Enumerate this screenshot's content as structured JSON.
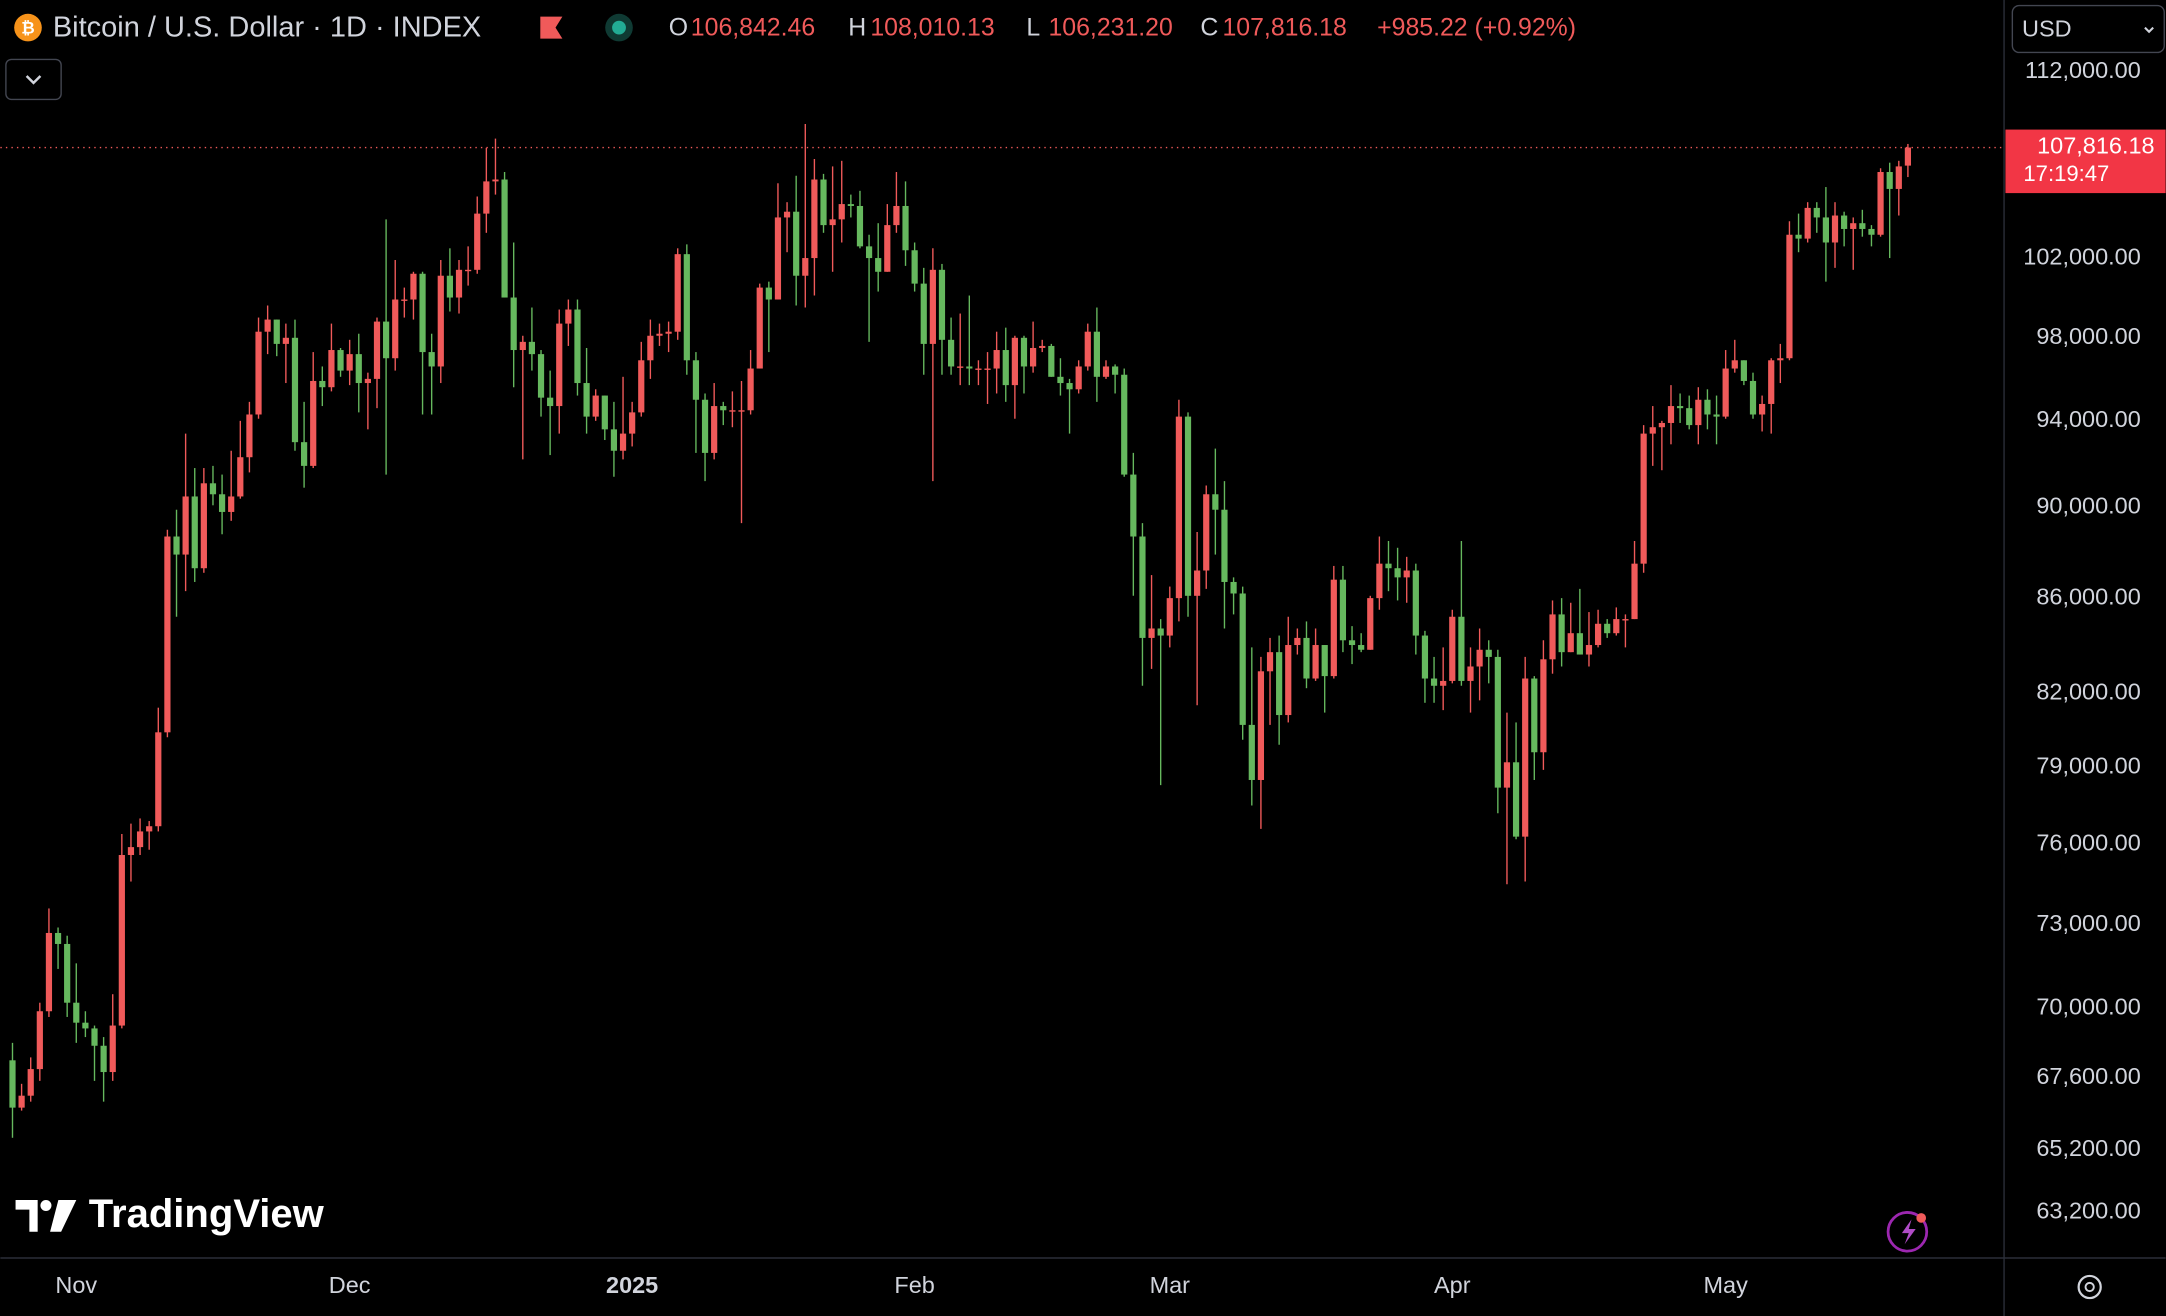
{
  "chart_data": {
    "type": "candlestick",
    "title": "Bitcoin / U.S. Dollar · 1D · INDEX",
    "legend_ohlc": [
      {
        "key": "O",
        "value": "106,842.46"
      },
      {
        "key": "H",
        "value": "108,010.13"
      },
      {
        "key": "L",
        "value": "106,231.20"
      },
      {
        "key": "C",
        "value": "107,816.18"
      }
    ],
    "change": "+985.22 (+0.92%)",
    "currency": "USD",
    "last_price_label": "107,816.18",
    "countdown": "17:19:47",
    "logo": "TradingView",
    "up_color": "#f05a5a",
    "down_color": "#66b85e",
    "log_scale": true,
    "grid": false,
    "xlim": [
      -1.33,
      218.4
    ],
    "xticks": [
      {
        "value": 7,
        "label": "Nov"
      },
      {
        "value": 37,
        "label": "Dec"
      },
      {
        "value": 68,
        "label": "2025"
      },
      {
        "value": 99,
        "label": "Feb"
      },
      {
        "value": 127,
        "label": "Mar"
      },
      {
        "value": 158,
        "label": "Apr"
      },
      {
        "value": 188,
        "label": "May"
      }
    ],
    "ylim": [
      61760,
      116100
    ],
    "yticks": [
      {
        "value": 112000,
        "label": "112,000.00"
      },
      {
        "value": 102000,
        "label": "102,000.00"
      },
      {
        "value": 98000,
        "label": "98,000.00"
      },
      {
        "value": 94000,
        "label": "94,000.00"
      },
      {
        "value": 90000,
        "label": "90,000.00"
      },
      {
        "value": 86000,
        "label": "86,000.00"
      },
      {
        "value": 82000,
        "label": "82,000.00"
      },
      {
        "value": 79000,
        "label": "79,000.00"
      },
      {
        "value": 76000,
        "label": "76,000.00"
      },
      {
        "value": 73000,
        "label": "73,000.00"
      },
      {
        "value": 70000,
        "label": "70,000.00"
      },
      {
        "value": 67600,
        "label": "67,600.00"
      },
      {
        "value": 65200,
        "label": "65,200.00"
      },
      {
        "value": 63200,
        "label": "63,200.00"
      }
    ],
    "ohlc": [
      [
        68200,
        68800,
        65600,
        66600
      ],
      [
        66600,
        67400,
        66500,
        67000
      ],
      [
        67000,
        68300,
        66800,
        67900
      ],
      [
        67900,
        70200,
        67500,
        69900
      ],
      [
        69900,
        73600,
        69700,
        72700
      ],
      [
        72700,
        72900,
        71400,
        72300
      ],
      [
        72300,
        72600,
        69700,
        70200
      ],
      [
        70200,
        71600,
        68800,
        69500
      ],
      [
        69500,
        69900,
        69000,
        69300
      ],
      [
        69300,
        69400,
        67500,
        68700
      ],
      [
        68700,
        69000,
        66800,
        67800
      ],
      [
        67800,
        70500,
        67500,
        69400
      ],
      [
        69400,
        76400,
        69300,
        75600
      ],
      [
        75600,
        76800,
        74600,
        75900
      ],
      [
        75900,
        77000,
        75600,
        76500
      ],
      [
        76500,
        76900,
        75800,
        76700
      ],
      [
        76700,
        81400,
        76500,
        80400
      ],
      [
        80400,
        89000,
        80200,
        88700
      ],
      [
        88700,
        89900,
        85200,
        87900
      ],
      [
        87900,
        93400,
        86300,
        90500
      ],
      [
        90500,
        91800,
        86700,
        87300
      ],
      [
        87300,
        91800,
        87100,
        91100
      ],
      [
        91100,
        91900,
        90100,
        90600
      ],
      [
        90600,
        91500,
        88800,
        89800
      ],
      [
        89800,
        92600,
        89400,
        90500
      ],
      [
        90500,
        94000,
        90400,
        92300
      ],
      [
        92300,
        94900,
        91600,
        94300
      ],
      [
        94300,
        99000,
        94100,
        98300
      ],
      [
        98300,
        99600,
        97200,
        98900
      ],
      [
        98900,
        98900,
        97100,
        97700
      ],
      [
        97700,
        98700,
        95800,
        98000
      ],
      [
        98000,
        98900,
        92600,
        93000
      ],
      [
        93000,
        94900,
        90900,
        91900
      ],
      [
        91900,
        97300,
        91800,
        95900
      ],
      [
        95900,
        96600,
        94700,
        95600
      ],
      [
        95600,
        98700,
        95400,
        97400
      ],
      [
        97400,
        97500,
        96100,
        96400
      ],
      [
        96400,
        97900,
        95700,
        97200
      ],
      [
        97200,
        98200,
        94400,
        95800
      ],
      [
        95800,
        96300,
        93600,
        96000
      ],
      [
        96000,
        99000,
        94600,
        98800
      ],
      [
        98800,
        104000,
        91500,
        97000
      ],
      [
        97000,
        101900,
        96400,
        99900
      ],
      [
        99900,
        100500,
        99000,
        99900
      ],
      [
        99900,
        101300,
        98900,
        101200
      ],
      [
        101200,
        101300,
        94300,
        97300
      ],
      [
        97300,
        98200,
        94300,
        96600
      ],
      [
        96600,
        101900,
        95800,
        101100
      ],
      [
        101100,
        102500,
        99300,
        100000
      ],
      [
        100000,
        101900,
        99200,
        101400
      ],
      [
        101400,
        102600,
        100600,
        101400
      ],
      [
        101400,
        105200,
        101200,
        104300
      ],
      [
        104300,
        107800,
        103300,
        106000
      ],
      [
        106000,
        108300,
        105300,
        106100
      ],
      [
        106100,
        106500,
        100000,
        100000
      ],
      [
        100000,
        102800,
        95600,
        97400
      ],
      [
        97400,
        98100,
        92200,
        97800
      ],
      [
        97800,
        99500,
        96400,
        97200
      ],
      [
        97200,
        97400,
        94200,
        95100
      ],
      [
        95100,
        96400,
        92400,
        94700
      ],
      [
        94700,
        99400,
        93400,
        98700
      ],
      [
        98700,
        99900,
        97600,
        99400
      ],
      [
        99400,
        99900,
        95200,
        95800
      ],
      [
        95800,
        97500,
        93400,
        94200
      ],
      [
        94200,
        95500,
        94000,
        95200
      ],
      [
        95200,
        95200,
        93100,
        93600
      ],
      [
        93600,
        94900,
        91400,
        92600
      ],
      [
        92600,
        96100,
        92200,
        93400
      ],
      [
        93400,
        94900,
        92800,
        94400
      ],
      [
        94400,
        97800,
        94200,
        96900
      ],
      [
        96900,
        98900,
        96000,
        98100
      ],
      [
        98100,
        98700,
        97600,
        98200
      ],
      [
        98200,
        98800,
        97300,
        98300
      ],
      [
        98300,
        102500,
        97900,
        102200
      ],
      [
        102200,
        102700,
        96200,
        96900
      ],
      [
        96900,
        97300,
        92500,
        95000
      ],
      [
        95000,
        95300,
        91200,
        92500
      ],
      [
        92500,
        95800,
        92200,
        94700
      ],
      [
        94700,
        94900,
        93800,
        94500
      ],
      [
        94500,
        95400,
        93700,
        94500
      ],
      [
        94500,
        95900,
        89300,
        94500
      ],
      [
        94500,
        97400,
        94300,
        96500
      ],
      [
        96500,
        100700,
        96500,
        100500
      ],
      [
        100500,
        100800,
        97300,
        99900
      ],
      [
        99900,
        105900,
        99900,
        104100
      ],
      [
        104100,
        104900,
        102300,
        104400
      ],
      [
        104400,
        106300,
        99600,
        101100
      ],
      [
        101100,
        109100,
        99500,
        102000
      ],
      [
        102000,
        107200,
        100100,
        106100
      ],
      [
        106100,
        106400,
        103300,
        103700
      ],
      [
        103700,
        106800,
        101300,
        104000
      ],
      [
        104000,
        107100,
        102800,
        104800
      ],
      [
        104800,
        105300,
        104100,
        104700
      ],
      [
        104700,
        105500,
        102500,
        102600
      ],
      [
        102600,
        103200,
        97800,
        102000
      ],
      [
        102000,
        103800,
        100300,
        101300
      ],
      [
        101300,
        104800,
        101300,
        103700
      ],
      [
        103700,
        106500,
        103300,
        104700
      ],
      [
        104700,
        106000,
        101600,
        102400
      ],
      [
        102400,
        102800,
        100300,
        100700
      ],
      [
        100700,
        101500,
        96200,
        97700
      ],
      [
        97700,
        102500,
        91200,
        101400
      ],
      [
        101400,
        101700,
        96200,
        97900
      ],
      [
        97900,
        99000,
        96200,
        96600
      ],
      [
        96600,
        99200,
        95700,
        96600
      ],
      [
        96600,
        100100,
        95700,
        96500
      ],
      [
        96500,
        96900,
        95700,
        96500
      ],
      [
        96500,
        97300,
        94800,
        96500
      ],
      [
        96500,
        98300,
        95300,
        97400
      ],
      [
        97400,
        98500,
        94900,
        95700
      ],
      [
        95700,
        98100,
        94100,
        98000
      ],
      [
        98000,
        98100,
        95300,
        96600
      ],
      [
        96600,
        98800,
        96300,
        97500
      ],
      [
        97500,
        97900,
        97300,
        97600
      ],
      [
        97600,
        97700,
        96100,
        96100
      ],
      [
        96100,
        97000,
        95200,
        95800
      ],
      [
        95800,
        96000,
        93400,
        95500
      ],
      [
        95500,
        96900,
        95300,
        96600
      ],
      [
        96600,
        98700,
        96400,
        98300
      ],
      [
        98300,
        99500,
        94900,
        96100
      ],
      [
        96100,
        96900,
        96000,
        96600
      ],
      [
        96600,
        96700,
        95300,
        96200
      ],
      [
        96200,
        96500,
        91400,
        91500
      ],
      [
        91500,
        92500,
        86100,
        88700
      ],
      [
        88700,
        89300,
        82300,
        84300
      ],
      [
        84300,
        87000,
        83000,
        84700
      ],
      [
        84700,
        85100,
        78300,
        84400
      ],
      [
        84400,
        86500,
        83900,
        86000
      ],
      [
        86000,
        95000,
        85000,
        94200
      ],
      [
        94200,
        94400,
        85200,
        86100
      ],
      [
        86100,
        88900,
        81500,
        87200
      ],
      [
        87200,
        91000,
        86400,
        90600
      ],
      [
        90600,
        92700,
        87900,
        89900
      ],
      [
        89900,
        91200,
        84700,
        86700
      ],
      [
        86700,
        86900,
        85300,
        86200
      ],
      [
        86200,
        86500,
        80100,
        80700
      ],
      [
        80700,
        83900,
        77500,
        78500
      ],
      [
        78500,
        83500,
        76600,
        82900
      ],
      [
        82900,
        84300,
        80700,
        83700
      ],
      [
        83700,
        84400,
        79900,
        81100
      ],
      [
        81100,
        85200,
        80800,
        84000
      ],
      [
        84000,
        84700,
        83600,
        84300
      ],
      [
        84300,
        85000,
        82200,
        82600
      ],
      [
        82600,
        84700,
        82500,
        84000
      ],
      [
        84000,
        84000,
        81200,
        82700
      ],
      [
        82700,
        87400,
        82600,
        86800
      ],
      [
        86800,
        87400,
        83700,
        84200
      ],
      [
        84200,
        84800,
        83200,
        84000
      ],
      [
        84000,
        84500,
        83700,
        83800
      ],
      [
        83800,
        86100,
        83800,
        86000
      ],
      [
        86000,
        88700,
        85500,
        87500
      ],
      [
        87500,
        88500,
        86300,
        87300
      ],
      [
        87300,
        88200,
        85900,
        86900
      ],
      [
        86900,
        87800,
        85800,
        87200
      ],
      [
        87200,
        87500,
        83600,
        84400
      ],
      [
        84400,
        84600,
        81600,
        82600
      ],
      [
        82600,
        83500,
        81600,
        82300
      ],
      [
        82300,
        83900,
        81300,
        82500
      ],
      [
        82500,
        85500,
        82400,
        85200
      ],
      [
        85200,
        88500,
        82300,
        82500
      ],
      [
        82500,
        83900,
        81200,
        83100
      ],
      [
        83100,
        84700,
        81700,
        83800
      ],
      [
        83800,
        84200,
        82400,
        83500
      ],
      [
        83500,
        83800,
        77200,
        78200
      ],
      [
        78200,
        81200,
        74500,
        79200
      ],
      [
        79200,
        80800,
        76200,
        76300
      ],
      [
        76300,
        83500,
        74600,
        82600
      ],
      [
        82600,
        82700,
        78500,
        79600
      ],
      [
        79600,
        84200,
        78900,
        83400
      ],
      [
        83400,
        85900,
        82800,
        85300
      ],
      [
        85300,
        86000,
        83100,
        83700
      ],
      [
        83700,
        85800,
        83700,
        84500
      ],
      [
        84500,
        86400,
        83600,
        83600
      ],
      [
        83600,
        85400,
        83100,
        84000
      ],
      [
        84000,
        85500,
        83900,
        84900
      ],
      [
        84900,
        85100,
        84300,
        84500
      ],
      [
        84500,
        85600,
        84400,
        85100
      ],
      [
        85100,
        85300,
        83900,
        85100
      ],
      [
        85100,
        88500,
        85100,
        87500
      ],
      [
        87500,
        93800,
        87100,
        93400
      ],
      [
        93400,
        94700,
        91900,
        93700
      ],
      [
        93700,
        94000,
        91700,
        93900
      ],
      [
        93900,
        95700,
        92900,
        94700
      ],
      [
        94700,
        95300,
        93900,
        94600
      ],
      [
        94600,
        95200,
        93600,
        93800
      ],
      [
        93800,
        95600,
        92900,
        95000
      ],
      [
        95000,
        95500,
        93600,
        94300
      ],
      [
        94300,
        95200,
        92900,
        94200
      ],
      [
        94200,
        97400,
        94100,
        96500
      ],
      [
        96500,
        97900,
        96300,
        96900
      ],
      [
        96900,
        96900,
        95700,
        95900
      ],
      [
        95900,
        96300,
        94100,
        94300
      ],
      [
        94300,
        95200,
        93500,
        94800
      ],
      [
        94800,
        97000,
        93400,
        96900
      ],
      [
        96900,
        97700,
        95800,
        97000
      ],
      [
        97000,
        103900,
        96900,
        103200
      ],
      [
        103200,
        104300,
        102300,
        103000
      ],
      [
        103000,
        104900,
        102800,
        104600
      ],
      [
        104600,
        104900,
        103300,
        104100
      ],
      [
        104100,
        105700,
        100800,
        102800
      ],
      [
        102800,
        104900,
        101500,
        104200
      ],
      [
        104200,
        104400,
        102600,
        103500
      ],
      [
        103500,
        104100,
        101400,
        103800
      ],
      [
        103800,
        104500,
        103100,
        103500
      ],
      [
        103500,
        103700,
        102600,
        103200
      ],
      [
        103200,
        106700,
        103100,
        106500
      ],
      [
        106500,
        107000,
        102000,
        105600
      ],
      [
        105600,
        107100,
        104200,
        106800
      ],
      [
        106842.46,
        108010.13,
        106231.2,
        107816.18
      ]
    ]
  }
}
